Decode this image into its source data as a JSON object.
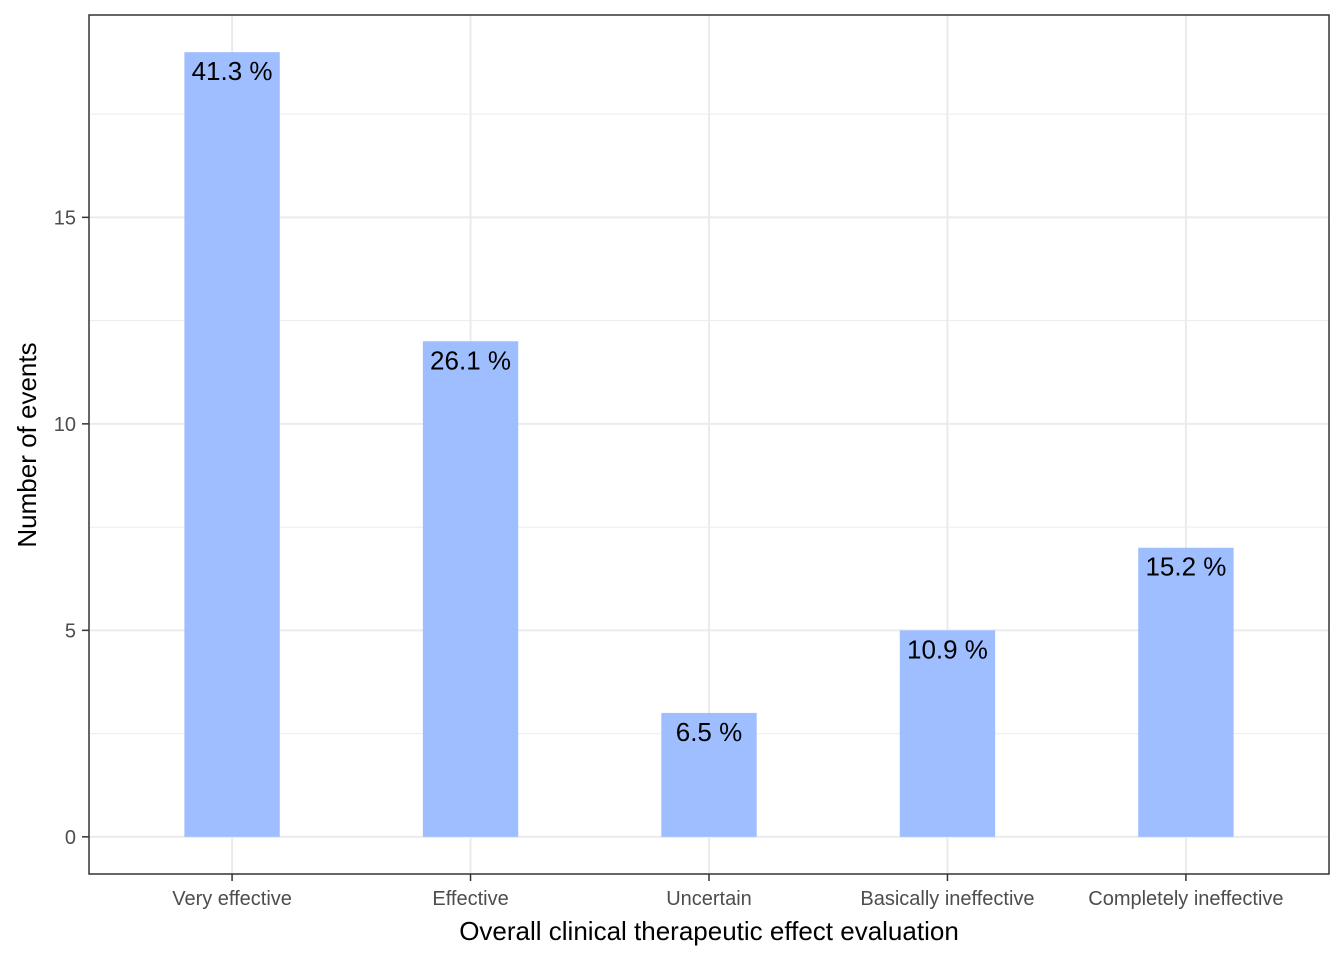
{
  "chart_data": {
    "type": "bar",
    "title": "",
    "xlabel": "Overall clinical therapeutic effect evaluation",
    "ylabel": "Number of events",
    "categories": [
      "Very effective",
      "Effective",
      "Uncertain",
      "Basically ineffective",
      "Completely ineffective"
    ],
    "values": [
      19,
      12,
      3,
      5,
      7
    ],
    "data_labels": [
      "41.3 %",
      "26.1 %",
      "6.5 %",
      "10.9 %",
      "15.2 %"
    ],
    "yticks": [
      0,
      5,
      10,
      15
    ],
    "ytick_labels": [
      "0",
      "5",
      "10",
      "15"
    ],
    "ylim": [
      -0.9,
      19.9
    ],
    "grid": true,
    "legend": "none",
    "colors": {
      "bar": "#99bbff",
      "grid": "#ebebeb",
      "panel_border": "#333333",
      "tick_label": "#4d4d4d",
      "text": "#000000"
    }
  }
}
